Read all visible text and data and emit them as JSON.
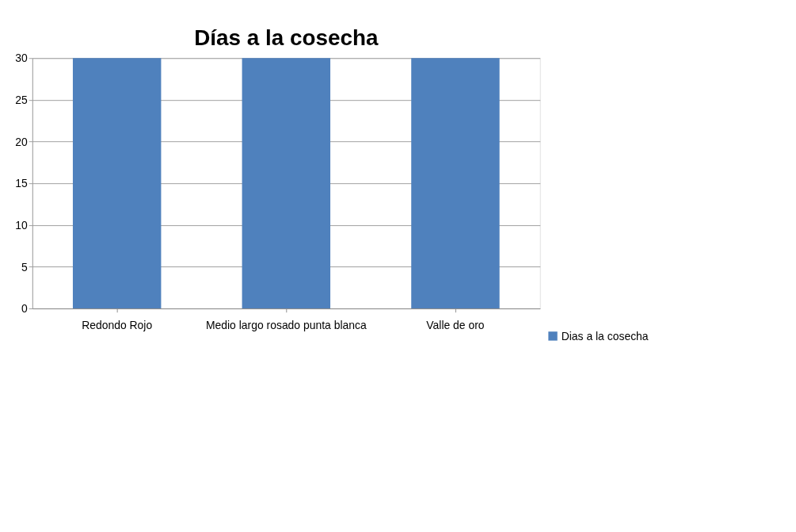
{
  "chart_data": {
    "type": "bar",
    "title": "Días a la cosecha",
    "categories": [
      "Redondo Rojo",
      "Medio largo rosado punta blanca",
      "Valle de oro"
    ],
    "series": [
      {
        "name": "Dias a la cosecha",
        "color": "#4f81bd",
        "values": [
          30,
          30,
          30
        ]
      }
    ],
    "ylim": [
      0,
      30
    ],
    "yticks": [
      0,
      5,
      10,
      15,
      20,
      25,
      30
    ],
    "grid": "y",
    "legend": "bottom right"
  }
}
